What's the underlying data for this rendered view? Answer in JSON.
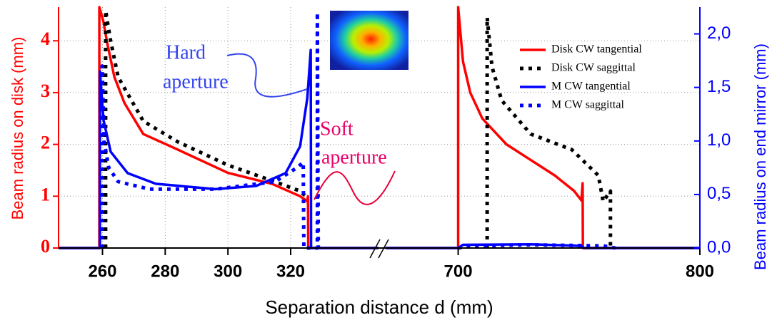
{
  "chart_data": {
    "type": "line",
    "x_label": "Separation distance d (mm)",
    "y_label": "Beam radius on disk (mm)",
    "y2_label": "Beam radius on end mirror (mm)",
    "x_segments": [
      {
        "xlim": [
          246,
          348
        ],
        "xticks": [
          260,
          280,
          300,
          320
        ]
      },
      {
        "xlim": [
          670,
          800
        ],
        "xticks": [
          700,
          800
        ]
      }
    ],
    "ylim": [
      0,
      4.65
    ],
    "yticks": [
      0,
      1,
      2,
      3,
      4
    ],
    "y2lim": [
      0,
      2.25
    ],
    "y2ticks": [
      {
        "value": 0,
        "label": "0,0"
      },
      {
        "value": 0.5,
        "label": "0,5"
      },
      {
        "value": 1,
        "label": "1,0"
      },
      {
        "value": 1.5,
        "label": "1,5"
      },
      {
        "value": 2,
        "label": "2,0"
      }
    ],
    "grid": true,
    "legend": "upper right",
    "annotations": [
      "Hard",
      "aperture",
      "Soft",
      "aperture"
    ],
    "series": [
      {
        "name": "Disk CW tangential",
        "color": "#ff0000",
        "style": "solid",
        "axis": "y",
        "x": [
          246,
          259,
          259,
          260.3,
          261.5,
          263.8,
          267,
          273,
          284,
          300,
          314,
          323,
          325.3,
          325.5,
          325.6,
          348,
          null,
          670,
          700,
          700,
          702,
          705,
          710,
          720,
          730,
          740,
          748,
          751,
          751.5,
          751.6,
          800
        ],
        "values": [
          0,
          0,
          4.65,
          4.37,
          3.96,
          3.3,
          2.8,
          2.2,
          1.9,
          1.45,
          1.24,
          1.0,
          0.9,
          1.0,
          0,
          0,
          null,
          0,
          0,
          4.65,
          3.6,
          3.0,
          2.5,
          2.0,
          1.7,
          1.4,
          1.1,
          0.92,
          1.25,
          0,
          0
        ]
      },
      {
        "name": "Disk CW saggittal",
        "color": "#000000",
        "style": "dotted",
        "axis": "y",
        "x": [
          261,
          261,
          262.6,
          265,
          273,
          284,
          300,
          314,
          323,
          324.8,
          null,
          712,
          712,
          714,
          718,
          730,
          747,
          758,
          760,
          763,
          763
        ],
        "values": [
          0,
          4.58,
          4.0,
          3.3,
          2.45,
          2.05,
          1.6,
          1.3,
          1.1,
          1.0,
          null,
          0,
          4.45,
          3.5,
          2.85,
          2.2,
          1.9,
          1.4,
          0.9,
          1.1,
          0
        ]
      },
      {
        "name": "M CW tangential",
        "color": "#0000ff",
        "style": "solid",
        "axis": "y2",
        "x": [
          246,
          259.2,
          259.2,
          260.3,
          262.6,
          268,
          277,
          296,
          309,
          318.4,
          323,
          325.3,
          326.4,
          326.5,
          348,
          null,
          670,
          700,
          702,
          730,
          751,
          752,
          800
        ],
        "values": [
          0,
          0,
          1.65,
          1.2,
          0.9,
          0.7,
          0.6,
          0.55,
          0.58,
          0.7,
          0.95,
          1.4,
          1.85,
          0,
          0,
          null,
          0,
          0,
          0.03,
          0.035,
          0.02,
          0,
          0
        ]
      },
      {
        "name": "M CW saggittal",
        "color": "#0000ff",
        "style": "dotted",
        "axis": "y2",
        "x": [
          259.9,
          259.9,
          260.5,
          262,
          265,
          275,
          296,
          315,
          322,
          324,
          324.2,
          328.5,
          328.5,
          328.8,
          null,
          700,
          705,
          730,
          760,
          765
        ],
        "values": [
          0,
          1.7,
          1.0,
          0.75,
          0.62,
          0.55,
          0.55,
          0.62,
          0.75,
          0.8,
          0,
          0,
          2.2,
          0,
          null,
          0,
          0.02,
          0.03,
          0.02,
          0
        ]
      }
    ]
  }
}
